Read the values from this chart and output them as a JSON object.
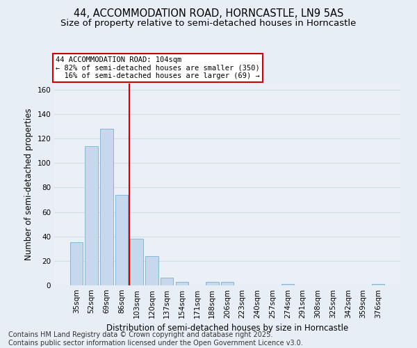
{
  "title_line1": "44, ACCOMMODATION ROAD, HORNCASTLE, LN9 5AS",
  "title_line2": "Size of property relative to semi-detached houses in Horncastle",
  "xlabel": "Distribution of semi-detached houses by size in Horncastle",
  "ylabel": "Number of semi-detached properties",
  "categories": [
    "35sqm",
    "52sqm",
    "69sqm",
    "86sqm",
    "103sqm",
    "120sqm",
    "137sqm",
    "154sqm",
    "171sqm",
    "188sqm",
    "206sqm",
    "223sqm",
    "240sqm",
    "257sqm",
    "274sqm",
    "291sqm",
    "308sqm",
    "325sqm",
    "342sqm",
    "359sqm",
    "376sqm"
  ],
  "values": [
    35,
    114,
    128,
    74,
    38,
    24,
    6,
    3,
    0,
    3,
    3,
    0,
    0,
    0,
    1,
    0,
    0,
    0,
    0,
    0,
    1
  ],
  "bar_color": "#c8d8ec",
  "bar_edge_color": "#7aafd4",
  "subject_line_index": 3.5,
  "subject_line_color": "#cc0000",
  "annotation_text": "44 ACCOMMODATION ROAD: 104sqm\n← 82% of semi-detached houses are smaller (350)\n  16% of semi-detached houses are larger (69) →",
  "annotation_box_color": "#ffffff",
  "annotation_box_edge_color": "#cc0000",
  "ylim": [
    0,
    165
  ],
  "yticks": [
    0,
    20,
    40,
    60,
    80,
    100,
    120,
    140,
    160
  ],
  "footnote_line1": "Contains HM Land Registry data © Crown copyright and database right 2025.",
  "footnote_line2": "Contains public sector information licensed under the Open Government Licence v3.0.",
  "bg_color": "#e8eef5",
  "plot_bg_color": "#eaf0f6",
  "grid_color": "#d0dce8",
  "title_fontsize": 10.5,
  "subtitle_fontsize": 9.5,
  "axis_label_fontsize": 8.5,
  "tick_fontsize": 7.5,
  "footnote_fontsize": 7.0,
  "annotation_fontsize": 7.5
}
